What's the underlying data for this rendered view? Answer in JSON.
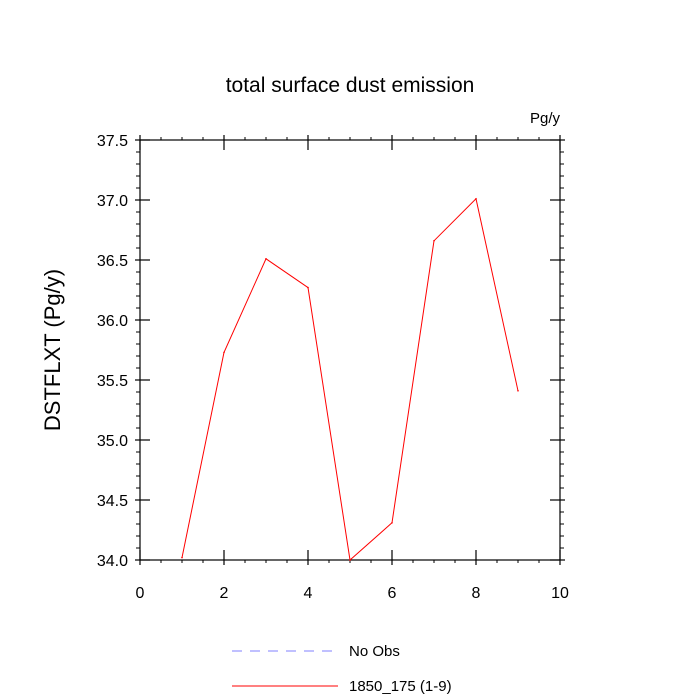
{
  "chart_data": {
    "type": "line",
    "title": "total surface dust emission",
    "units_label": "Pg/y",
    "ylabel": "DSTFLXT  (Pg/y)",
    "xlabel": "",
    "xlim": [
      0,
      10
    ],
    "ylim": [
      34.0,
      37.5
    ],
    "x_ticks": [
      "0",
      "2",
      "4",
      "6",
      "8",
      "10"
    ],
    "y_ticks": [
      "34.0",
      "34.5",
      "35.0",
      "35.5",
      "36.0",
      "36.5",
      "37.0",
      "37.5"
    ],
    "x_tick_values": [
      0,
      2,
      4,
      6,
      8,
      10
    ],
    "y_tick_values": [
      34.0,
      34.5,
      35.0,
      35.5,
      36.0,
      36.5,
      37.0,
      37.5
    ],
    "grid": false,
    "legend_position": "bottom",
    "series": [
      {
        "name": "1850_175 (1-9)",
        "color": "#ff0000",
        "style": "solid",
        "x": [
          1,
          2,
          3,
          4,
          5,
          6,
          7,
          8,
          9
        ],
        "y": [
          34.02,
          35.73,
          36.51,
          36.27,
          34.0,
          34.31,
          36.66,
          37.01,
          35.41
        ]
      }
    ],
    "legend": [
      {
        "label": "No Obs",
        "color": "#8080ff",
        "style": "dashed"
      },
      {
        "label": "1850_175 (1-9)",
        "color": "#ff0000",
        "style": "solid"
      }
    ]
  }
}
